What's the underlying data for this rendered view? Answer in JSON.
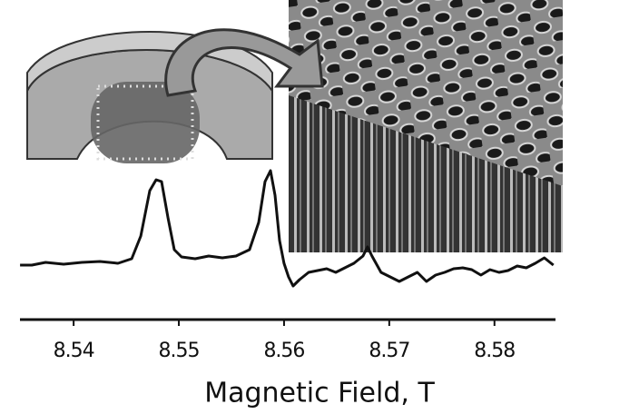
{
  "chart_data": {
    "type": "line",
    "x_label": "Magnetic Field, T",
    "x": [
      8.53491,
      8.53603,
      8.53733,
      8.53905,
      8.54078,
      8.5425,
      8.54422,
      8.54552,
      8.54638,
      8.54724,
      8.54784,
      8.54836,
      8.54897,
      8.54957,
      8.55026,
      8.55155,
      8.55284,
      8.55414,
      8.55543,
      8.55672,
      8.55759,
      8.55819,
      8.55871,
      8.55914,
      8.55957,
      8.56,
      8.56043,
      8.56086,
      8.56147,
      8.56233,
      8.56319,
      8.56405,
      8.56491,
      8.56578,
      8.56664,
      8.5675,
      8.56793,
      8.56836,
      8.56922,
      8.57009,
      8.57095,
      8.57181,
      8.57267,
      8.57353,
      8.5744,
      8.57526,
      8.57612,
      8.57698,
      8.57784,
      8.57871,
      8.57957,
      8.58043,
      8.58129,
      8.58216,
      8.58302,
      8.58388,
      8.58474,
      8.5856
    ],
    "values": [
      8,
      8,
      11,
      9,
      11,
      12,
      10,
      15,
      40,
      90,
      102,
      100,
      60,
      25,
      17,
      15,
      18,
      16,
      18,
      25,
      55,
      100,
      112,
      85,
      35,
      10,
      -5,
      -15,
      -8,
      0,
      2,
      4,
      0,
      5,
      10,
      18,
      28,
      18,
      0,
      -5,
      -10,
      -5,
      0,
      -10,
      -3,
      0,
      4,
      5,
      3,
      -3,
      3,
      0,
      2,
      7,
      5,
      10,
      16,
      8
    ],
    "color": "#111111",
    "xlim": [
      8.5349,
      8.5858
    ],
    "xticks": [
      8.54,
      8.55,
      8.56,
      8.57,
      8.58
    ]
  }
}
